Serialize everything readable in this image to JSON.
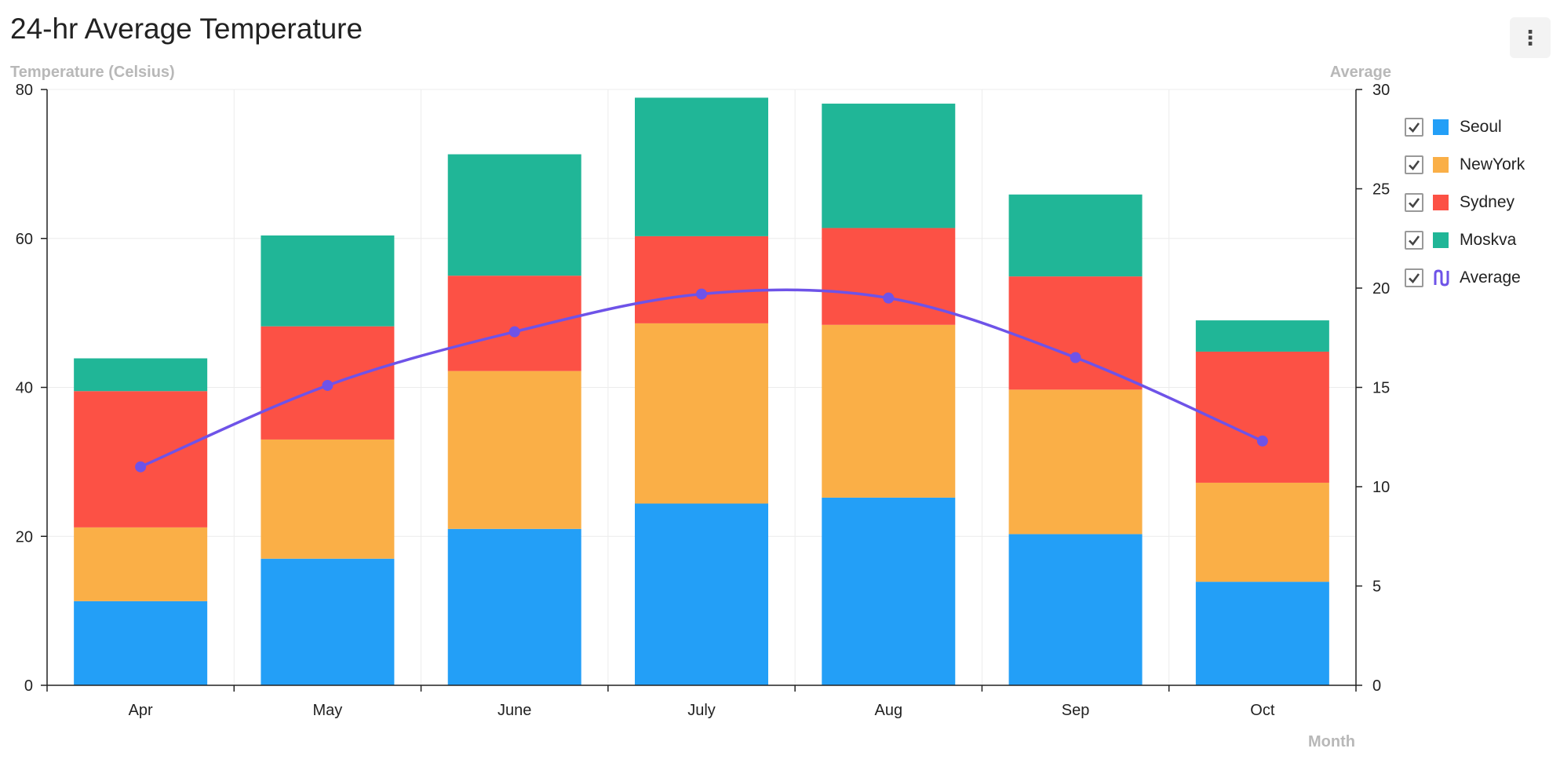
{
  "header": {
    "title": "24-hr Average Temperature",
    "menu_icon": "more-vertical-icon"
  },
  "chart_data": {
    "type": "bar",
    "stacked": true,
    "categories": [
      "Apr",
      "May",
      "June",
      "July",
      "Aug",
      "Sep",
      "Oct"
    ],
    "series": [
      {
        "name": "Seoul",
        "type": "bar",
        "color": "#239ff7",
        "values": [
          11.3,
          17.0,
          21.0,
          24.4,
          25.2,
          20.3,
          13.9
        ]
      },
      {
        "name": "NewYork",
        "type": "bar",
        "color": "#faaf47",
        "values": [
          9.9,
          16.0,
          21.2,
          24.2,
          23.2,
          19.4,
          13.3
        ]
      },
      {
        "name": "Sydney",
        "type": "bar",
        "color": "#fc5145",
        "values": [
          18.3,
          15.2,
          12.8,
          11.7,
          13.0,
          15.2,
          17.6
        ]
      },
      {
        "name": "Moskva",
        "type": "bar",
        "color": "#20b697",
        "values": [
          4.4,
          12.2,
          16.3,
          18.6,
          16.7,
          11.0,
          4.2
        ]
      },
      {
        "name": "Average",
        "type": "line",
        "axis": "right",
        "color": "#6e53e8",
        "values": [
          11.0,
          15.1,
          17.8,
          19.7,
          19.5,
          16.5,
          12.3
        ]
      }
    ],
    "ylabel": "Temperature (Celsius)",
    "y2label": "Average",
    "xlabel": "Month",
    "ylim": [
      0,
      80
    ],
    "y2lim": [
      0,
      30
    ],
    "yticks": [
      "0",
      "20",
      "40",
      "60",
      "80"
    ],
    "y2ticks": [
      "0",
      "5",
      "10",
      "15",
      "20",
      "25",
      "30"
    ],
    "grid": true,
    "legend": "right"
  }
}
